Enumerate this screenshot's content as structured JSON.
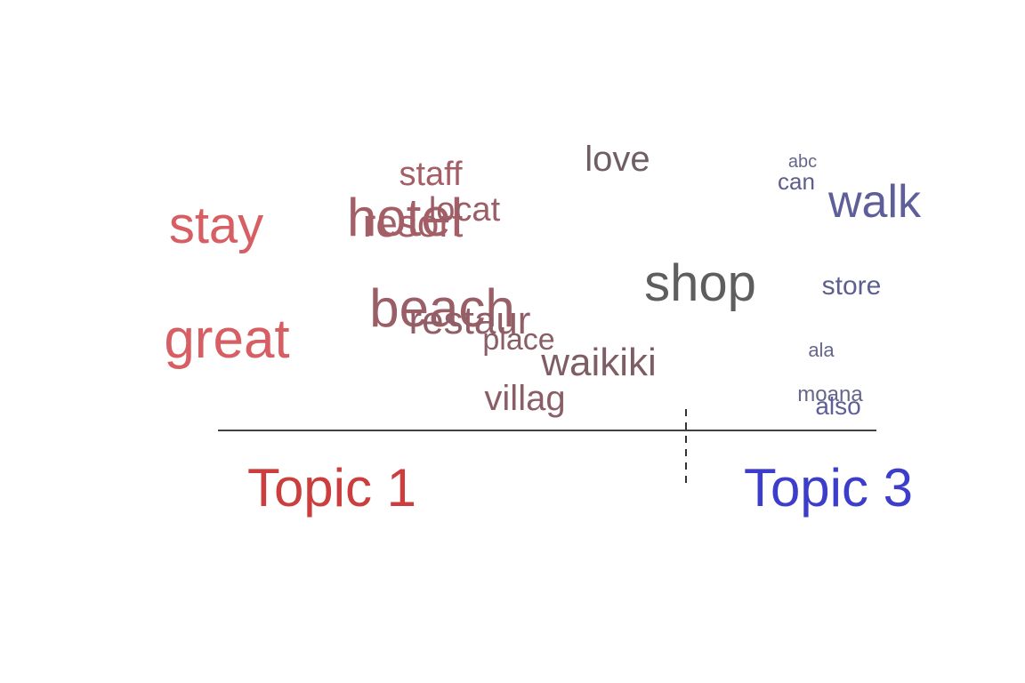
{
  "chart_data": {
    "type": "scatter",
    "title": "",
    "xlabel": "",
    "ylabel": "",
    "grid": false,
    "topics": [
      {
        "label": "Topic 1",
        "color": "#cc3d3d"
      },
      {
        "label": "Topic 3",
        "color": "#3d3dcc"
      }
    ],
    "words": [
      {
        "word": "stay",
        "color": "#d75e63"
      },
      {
        "word": "great",
        "color": "#d75e63"
      },
      {
        "word": "staff",
        "color": "#a45e66"
      },
      {
        "word": "hotel",
        "color": "#a45e66"
      },
      {
        "word": "resort",
        "color": "#a45e66"
      },
      {
        "word": "locat",
        "color": "#9a5e66"
      },
      {
        "word": "beach",
        "color": "#9a5e66"
      },
      {
        "word": "restaur",
        "color": "#905e66"
      },
      {
        "word": "place",
        "color": "#8a5e66"
      },
      {
        "word": "villag",
        "color": "#8a5e66"
      },
      {
        "word": "waikiki",
        "color": "#7e5e64"
      },
      {
        "word": "love",
        "color": "#6f5e62"
      },
      {
        "word": "shop",
        "color": "#5e5e5e"
      },
      {
        "word": "abc",
        "color": "#66668a"
      },
      {
        "word": "can",
        "color": "#5e5e8a"
      },
      {
        "word": "walk",
        "color": "#5e5e9a"
      },
      {
        "word": "store",
        "color": "#5e5e90"
      },
      {
        "word": "ala",
        "color": "#66668a"
      },
      {
        "word": "moana",
        "color": "#66668a"
      },
      {
        "word": "also",
        "color": "#5e5e9a"
      }
    ]
  }
}
